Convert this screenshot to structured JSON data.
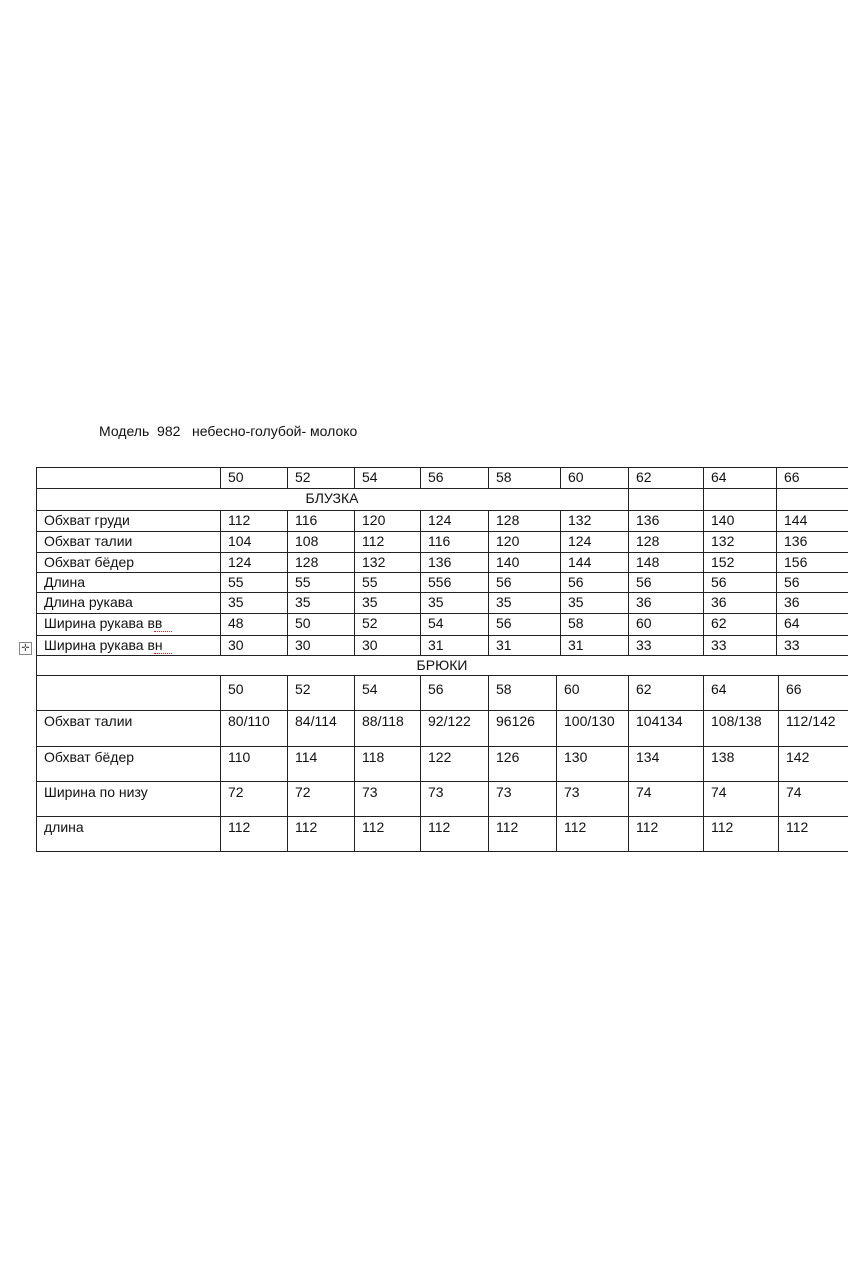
{
  "title": "Модель  982   небесно-голубой- молоко",
  "sizes": [
    "50",
    "52",
    "54",
    "56",
    "58",
    "60",
    "62",
    "64",
    "66"
  ],
  "blouse": {
    "section_label": "БЛУЗКА",
    "rows": [
      {
        "label": "Обхват груди",
        "values": [
          "112",
          "116",
          "120",
          "124",
          "128",
          "132",
          "136",
          "140",
          "144"
        ]
      },
      {
        "label": "Обхват талии",
        "values": [
          "104",
          "108",
          "112",
          "116",
          "120",
          "124",
          "128",
          "132",
          "136"
        ]
      },
      {
        "label": "Обхват бёдер",
        "values": [
          " 124",
          "128",
          "132",
          "136",
          "140",
          "144",
          "148",
          "152",
          "156"
        ]
      },
      {
        "label": "Длина",
        "values": [
          "55",
          "55",
          "55",
          "556",
          "56",
          "56",
          "56",
          "56",
          "56"
        ]
      },
      {
        "label": "Длина рукава",
        "values": [
          "35",
          "35",
          "35",
          "35",
          "35",
          "35",
          "36",
          "36",
          "36"
        ]
      },
      {
        "label": "Ширина рукава вв",
        "values": [
          "48",
          "50",
          "52",
          "54",
          "56",
          "58",
          "60",
          "62",
          "64"
        ]
      },
      {
        "label": "Ширина рукава вн",
        "values": [
          "30",
          "30",
          "30",
          "31",
          "31",
          "31",
          "33",
          "33",
          "33"
        ]
      }
    ]
  },
  "trousers": {
    "section_label": "БРЮКИ",
    "rows": [
      {
        "label": "Обхват талии",
        "values": [
          "80/110",
          "84/114",
          "88/118",
          "92/122",
          "96126",
          "100/130",
          "104134",
          "108/138",
          "112/142"
        ]
      },
      {
        "label": "Обхват бёдер",
        "values": [
          "110",
          "114",
          "118",
          "122",
          "126",
          "130",
          "134",
          "138",
          "142"
        ]
      },
      {
        "label": "Ширина по низу",
        "values": [
          "72",
          "72",
          "73",
          "73",
          "73",
          "73",
          "74",
          "74",
          "74"
        ]
      },
      {
        "label": "длина",
        "values": [
          "112",
          "112",
          "112",
          "112",
          "112",
          "112",
          "112",
          "112",
          "112"
        ]
      }
    ]
  }
}
